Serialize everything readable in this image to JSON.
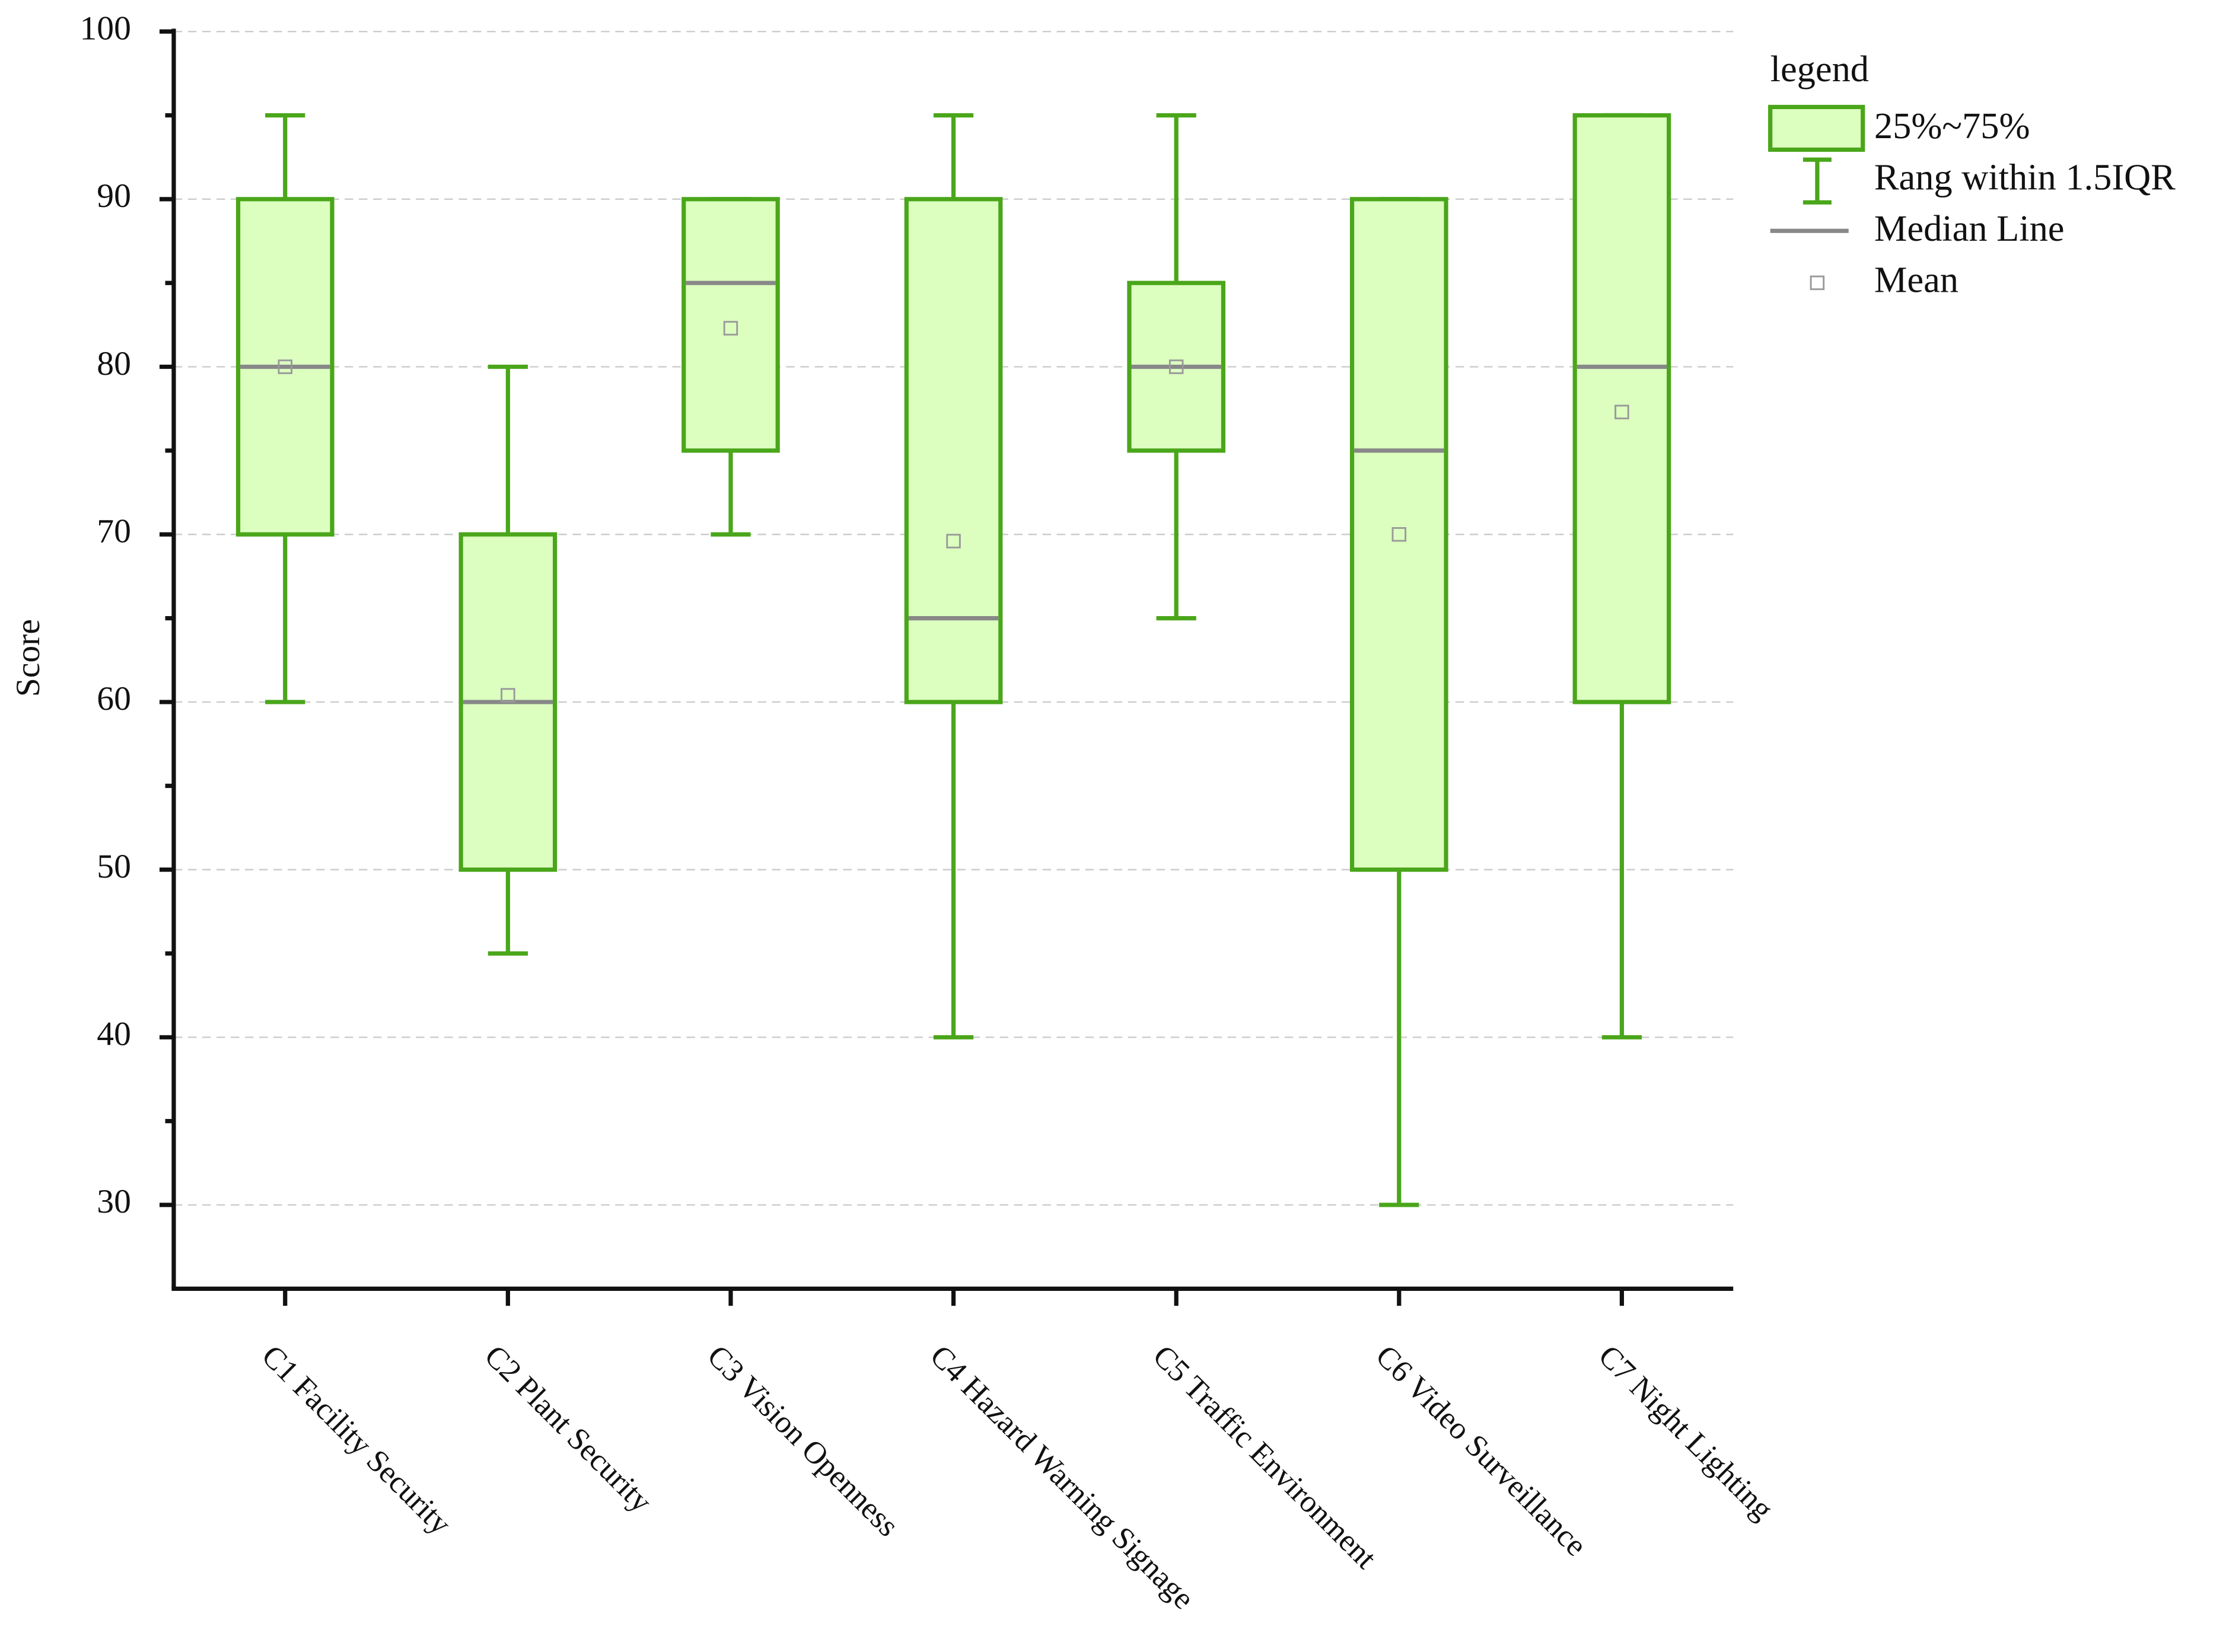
{
  "chart_data": {
    "type": "box",
    "y_label": "Score",
    "categories": [
      "C1 Facility Security",
      "C2 Plant Security",
      "C3 Vision Openness",
      "C4 Hazard Warning Signage",
      "C5 Traffic Environment",
      "C6 Video Surveillance",
      "C7 Night Lighting"
    ],
    "whisker_low": [
      60,
      45,
      70,
      40,
      65,
      30,
      40
    ],
    "q1": [
      70,
      50,
      75,
      60,
      75,
      50,
      60
    ],
    "median": [
      80,
      60,
      85,
      65,
      80,
      75,
      80
    ],
    "q3": [
      90,
      70,
      90,
      90,
      85,
      90,
      95
    ],
    "whisker_high": [
      95,
      80,
      90,
      95,
      95,
      90,
      95
    ],
    "mean": [
      80,
      60.4,
      82.3,
      69.6,
      80,
      70,
      77.3
    ],
    "box_color": "#4aa61a",
    "box_fill": "#dcffc0",
    "median_color": "#888888",
    "mean_color": "#999999",
    "ylim": [
      25,
      100
    ],
    "yticks": [
      30,
      40,
      50,
      60,
      70,
      80,
      90,
      100
    ],
    "minor_yticks": [
      35,
      45,
      55,
      65,
      75,
      85,
      95
    ],
    "grid": true,
    "legend": {
      "title": "legend",
      "position": "top-right",
      "entries": [
        "25%~75%",
        "Rang within 1.5IQR",
        "Median Line",
        "Mean"
      ]
    }
  }
}
